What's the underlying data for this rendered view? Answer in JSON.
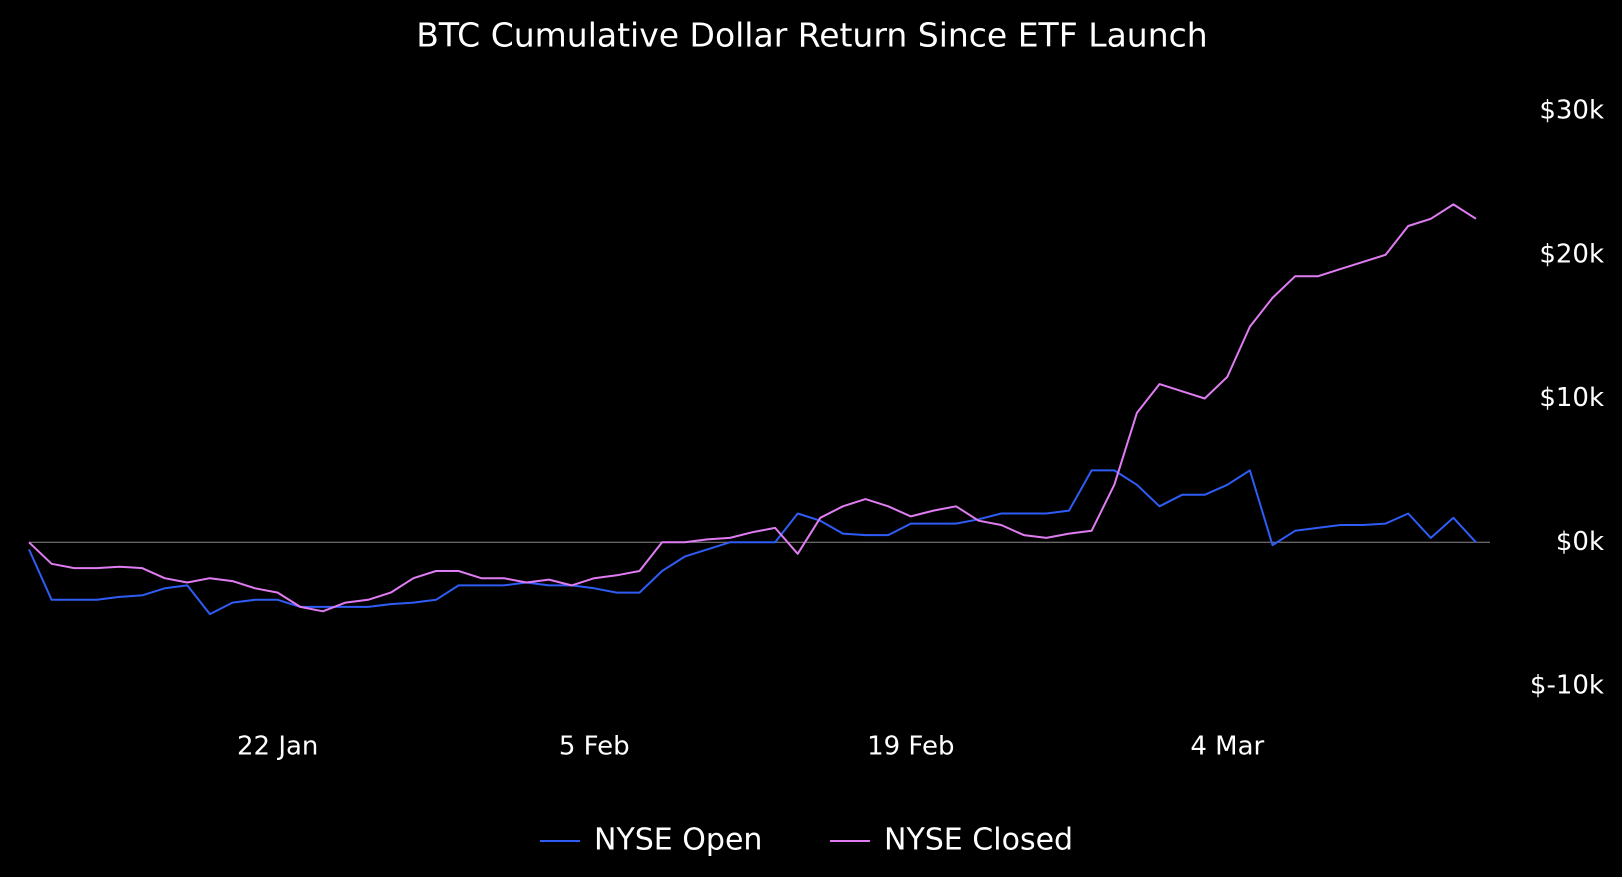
{
  "chart_data": {
    "type": "line",
    "title": "BTC Cumulative Dollar Return Since ETF Launch",
    "categories": [
      null,
      null,
      null,
      null,
      null,
      null,
      null,
      null,
      null,
      null,
      null,
      "22 Jan",
      null,
      null,
      null,
      null,
      null,
      null,
      null,
      null,
      null,
      null,
      null,
      null,
      null,
      "5 Feb",
      null,
      null,
      null,
      null,
      null,
      null,
      null,
      null,
      null,
      null,
      null,
      null,
      null,
      "19 Feb",
      null,
      null,
      null,
      null,
      null,
      null,
      null,
      null,
      null,
      null,
      null,
      null,
      null,
      "4 Mar",
      null,
      null,
      null,
      null,
      null,
      null,
      null,
      null,
      null,
      null,
      null
    ],
    "series": [
      {
        "name": "NYSE Open",
        "color": "#2f5cf5",
        "values": [
          -500,
          -4000,
          -4000,
          -4000,
          -3800,
          -3700,
          -3200,
          -3000,
          -5000,
          -4200,
          -4000,
          -4000,
          -4500,
          -4500,
          -4500,
          -4500,
          -4300,
          -4200,
          -4000,
          -3000,
          -3000,
          -3000,
          -2800,
          -3000,
          -3000,
          -3200,
          -3500,
          -3500,
          -2000,
          -1000,
          -500,
          0,
          0,
          0,
          2000,
          1500,
          600,
          500,
          500,
          1300,
          1300,
          1300,
          1600,
          2000,
          2000,
          2000,
          2200,
          5000,
          5000,
          4000,
          2500,
          3300,
          3300,
          4000,
          5000,
          -200,
          800,
          1000,
          1200,
          1200,
          1300,
          2000,
          300,
          1700,
          0
        ]
      },
      {
        "name": "NYSE Closed",
        "color": "#e07cf2",
        "values": [
          0,
          -1500,
          -1800,
          -1800,
          -1700,
          -1800,
          -2500,
          -2800,
          -2500,
          -2700,
          -3200,
          -3500,
          -4500,
          -4800,
          -4200,
          -4000,
          -3500,
          -2500,
          -2000,
          -2000,
          -2500,
          -2500,
          -2800,
          -2600,
          -3000,
          -2500,
          -2300,
          -2000,
          0,
          0,
          200,
          300,
          700,
          1000,
          -800,
          1700,
          2500,
          3000,
          2500,
          1800,
          2200,
          2500,
          1500,
          1200,
          500,
          300,
          600,
          800,
          4000,
          9000,
          11000,
          10500,
          10000,
          11500,
          15000,
          17000,
          18500,
          18500,
          19000,
          19500,
          20000,
          22000,
          22500,
          23500,
          22500
        ]
      }
    ],
    "ylim": [
      -10000,
      30000
    ],
    "yticks": [
      {
        "value": -10000,
        "label": "$-10k"
      },
      {
        "value": 0,
        "label": "$0k"
      },
      {
        "value": 10000,
        "label": "$10k"
      },
      {
        "value": 20000,
        "label": "$20k"
      },
      {
        "value": 30000,
        "label": "$30k"
      }
    ],
    "grid": false,
    "legend": "bottom"
  }
}
